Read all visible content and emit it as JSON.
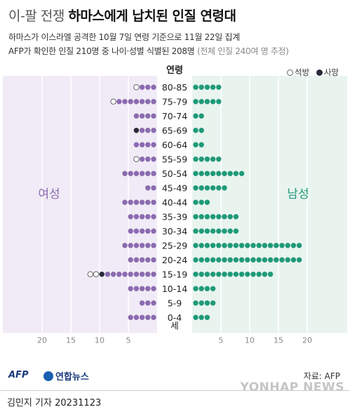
{
  "title": {
    "prefix": "이-팔 전쟁",
    "main": "하마스에게 납치된 인질 연령대"
  },
  "subtitle1": "하마스가 이스라엘 공격한 10월 7일 연령 기준으로 11월 22일 집계",
  "subtitle2_main": "AFP가 확인한 인질 210명 중 나이·성별 식별된 208명",
  "subtitle2_note": "(전체 인질 240여 명 추정)",
  "legend": {
    "released": "석방",
    "dead": "사망"
  },
  "colors": {
    "female": "#8b6bb0",
    "male": "#1f9a78",
    "female_bg": "#f0ebf6",
    "male_bg": "#e9f4ef",
    "released": "#ffffff",
    "dead": "#2a2a3a"
  },
  "source": "자료: AFP",
  "logos": {
    "afp": "AFP",
    "yonhap": "연합뉴스",
    "watermark": "YONHAP NEWS"
  },
  "byline": "김민지 기자  20231123",
  "chart_data": {
    "type": "population-pyramid (dot chart)",
    "category_header": "연령",
    "category_suffix": "세",
    "female_label": "여성",
    "male_label": "남성",
    "x_ticks_female": [
      "20",
      "15",
      "10",
      "5"
    ],
    "x_ticks_male": [
      "5",
      "10",
      "15",
      "20"
    ],
    "xlim": [
      0,
      20
    ],
    "categories": [
      "80-85",
      "75-79",
      "70-74",
      "65-69",
      "60-64",
      "55-59",
      "50-54",
      "45-49",
      "40-44",
      "35-39",
      "30-34",
      "25-29",
      "20-24",
      "15-19",
      "10-14",
      "5-9",
      "0-4"
    ],
    "series": [
      {
        "name": "여성",
        "total": [
          4,
          8,
          4,
          4,
          4,
          4,
          6,
          2,
          6,
          5,
          5,
          6,
          5,
          12,
          5,
          3,
          5
        ],
        "released": [
          1,
          1,
          0,
          0,
          0,
          1,
          0,
          0,
          0,
          0,
          0,
          0,
          0,
          2,
          0,
          0,
          0
        ],
        "dead": [
          0,
          0,
          0,
          1,
          0,
          0,
          0,
          0,
          0,
          0,
          0,
          0,
          0,
          1,
          0,
          0,
          0
        ]
      },
      {
        "name": "남성",
        "total": [
          5,
          5,
          2,
          2,
          2,
          5,
          9,
          6,
          3,
          8,
          8,
          19,
          19,
          14,
          4,
          4,
          3
        ],
        "released": [
          0,
          0,
          0,
          0,
          0,
          0,
          0,
          0,
          0,
          0,
          0,
          0,
          0,
          0,
          0,
          0,
          0
        ],
        "dead": [
          0,
          0,
          0,
          0,
          0,
          0,
          0,
          0,
          0,
          0,
          0,
          0,
          0,
          0,
          0,
          0,
          0
        ]
      }
    ]
  }
}
